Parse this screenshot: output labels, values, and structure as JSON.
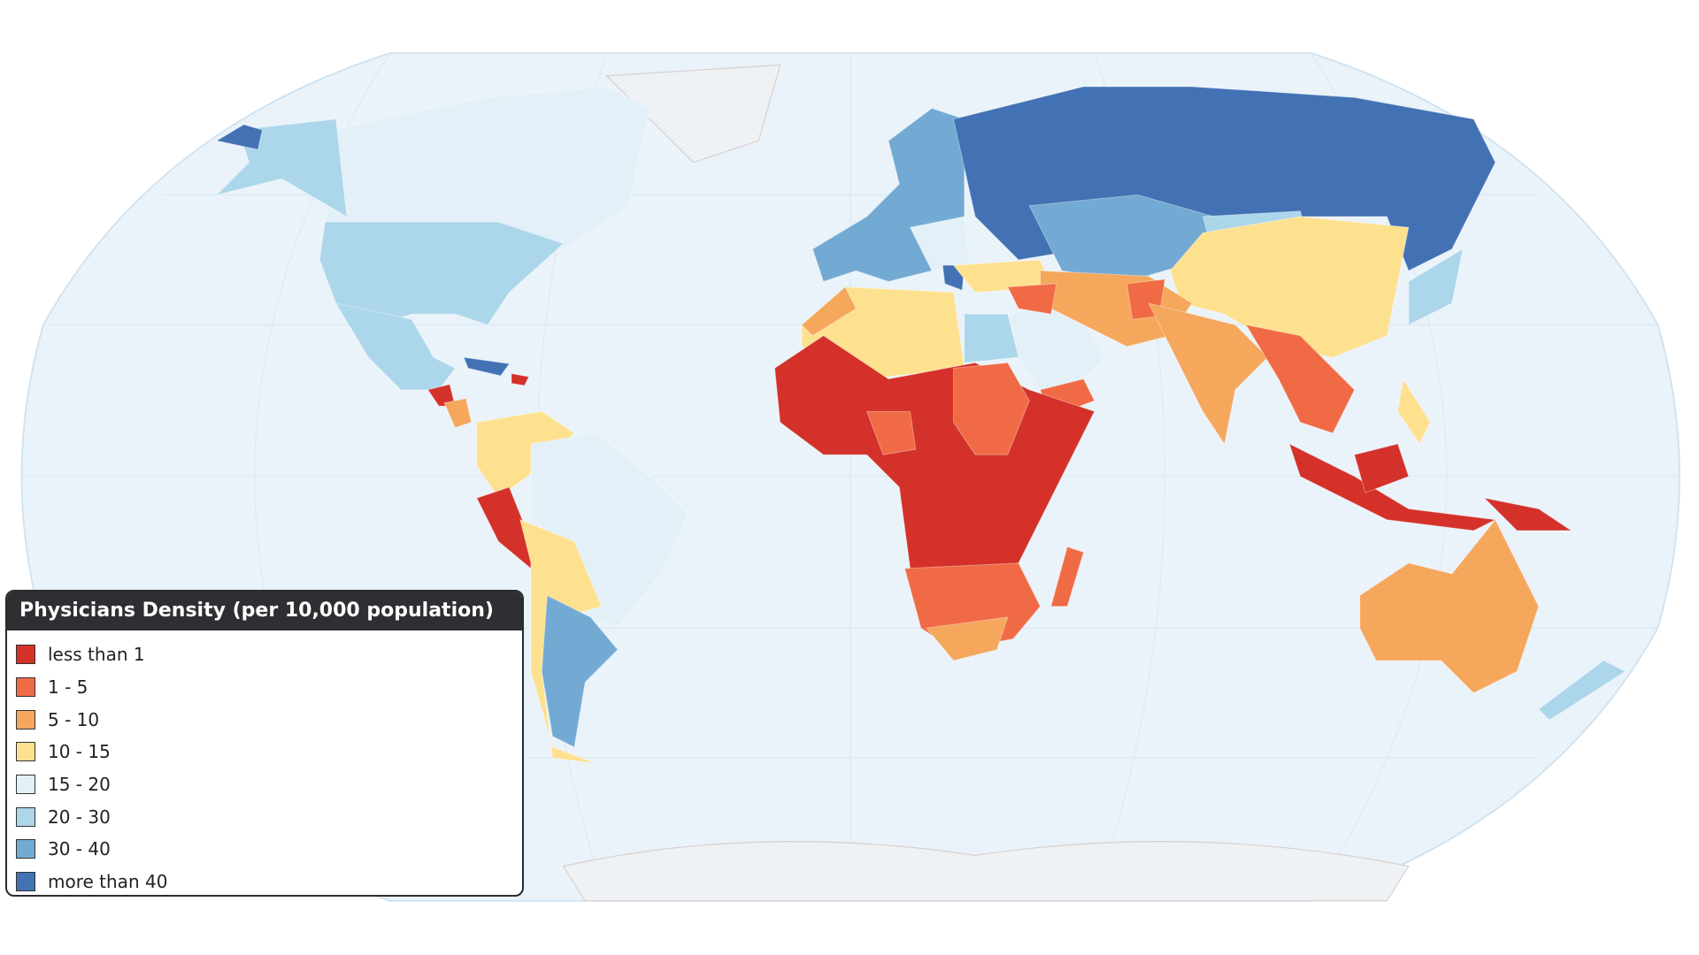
{
  "legend": {
    "title": "Physicians Density (per 10,000 population)",
    "items": [
      {
        "label": "less than 1",
        "color": "#d3312a"
      },
      {
        "label": "1 - 5",
        "color": "#f06b45"
      },
      {
        "label": "5 - 10",
        "color": "#f5a75c"
      },
      {
        "label": "10 - 15",
        "color": "#fee18f"
      },
      {
        "label": "15 - 20",
        "color": "#e3f0f8"
      },
      {
        "label": "20 - 30",
        "color": "#acd6ea"
      },
      {
        "label": "30 - 40",
        "color": "#73aad4"
      },
      {
        "label": "more than 40",
        "color": "#4272b4"
      }
    ]
  }
}
